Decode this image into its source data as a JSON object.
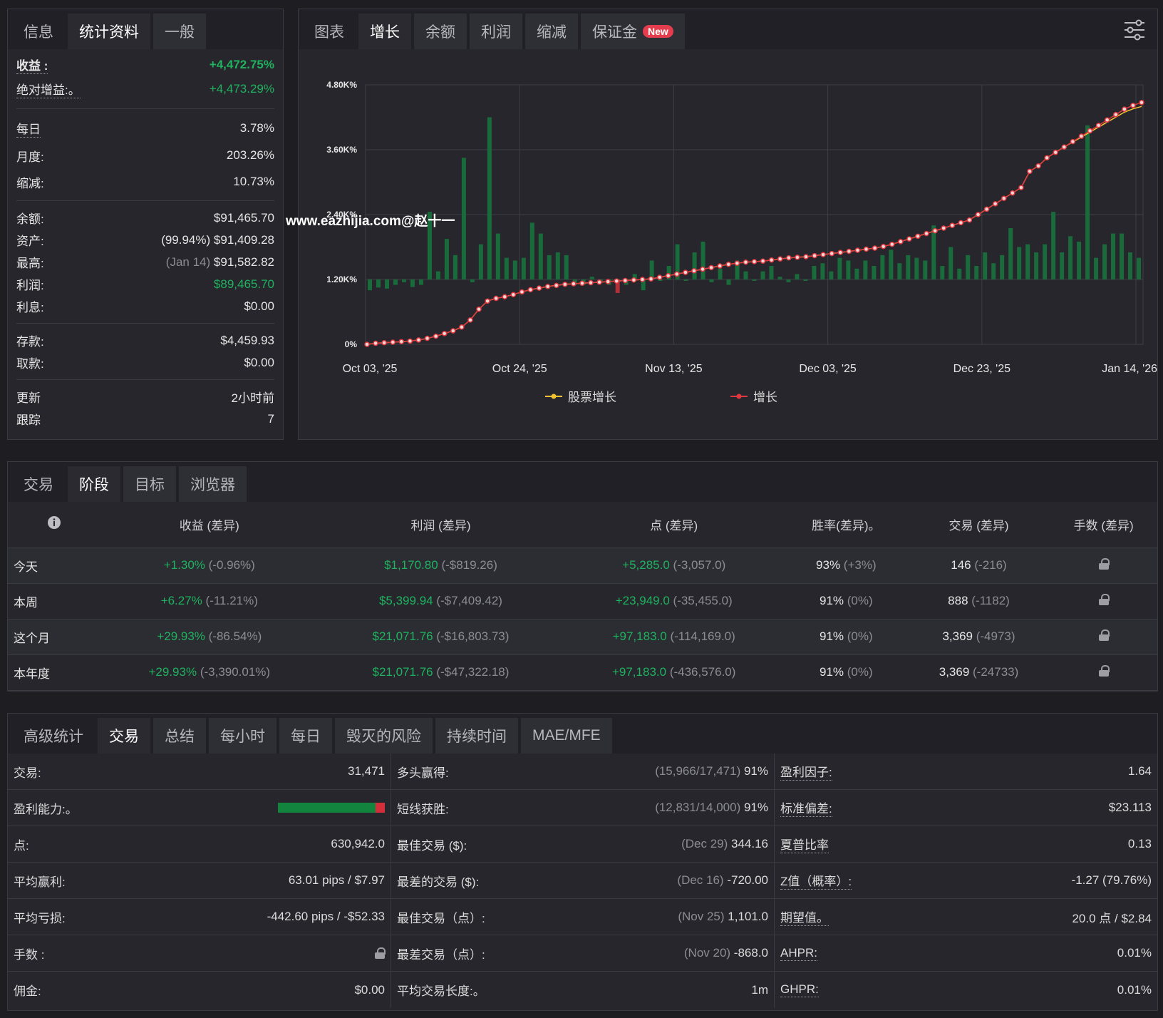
{
  "left": {
    "tabs": [
      "信息",
      "统计资料",
      "一般"
    ],
    "active_tab": 1,
    "profit_label": "收益 :",
    "profit_value": "+4,472.75%",
    "abs_label": "绝对增益:。",
    "abs_value": "+4,473.29%",
    "daily_label": "每日",
    "daily_value": "3.78%",
    "monthly_label": "月度:",
    "monthly_value": "203.26%",
    "drawdown_label": "缩减:",
    "drawdown_value": "10.73%",
    "balance_label": "余额:",
    "balance_value": "$91,465.70",
    "equity_label": "资产:",
    "equity_note": "(99.94%)",
    "equity_value": "$91,409.28",
    "high_label": "最高:",
    "high_note": "(Jan 14)",
    "high_value": "$91,582.82",
    "pl_label": "利润:",
    "pl_value": "$89,465.70",
    "interest_label": "利息:",
    "interest_value": "$0.00",
    "deposit_label": "存款:",
    "deposit_value": "$4,459.93",
    "withdraw_label": "取款:",
    "withdraw_value": "$0.00",
    "updated_label": "更新",
    "updated_value": "2小时前",
    "follow_label": "跟踪",
    "follow_value": "7"
  },
  "chart_panel": {
    "tabs": [
      "图表",
      "增长",
      "余额",
      "利润",
      "缩减",
      "保证金"
    ],
    "active_tab": 1,
    "new_badge": "New",
    "settings_icon": "sliders-icon",
    "watermark": "www.eazhijia.com@赵十一",
    "legend": [
      "股票增长",
      "增长"
    ]
  },
  "chart_data": {
    "type": "line+bar",
    "y_ticks": [
      "0%",
      "1.20K%",
      "2.40K%",
      "3.60K%",
      "4.80K%"
    ],
    "ylim": [
      0,
      4800
    ],
    "x_ticks": [
      "Oct 03, '25",
      "Oct 24, '25",
      "Nov 13, '25",
      "Dec 03, '25",
      "Dec 23, '25",
      "Jan 14, '26"
    ],
    "colors": {
      "growth": "#e0383f",
      "equity": "#f2c230",
      "bar_up": "#1a6b3c",
      "bar_down": "#b03038"
    },
    "growth": [
      0,
      20,
      30,
      40,
      50,
      60,
      80,
      110,
      150,
      200,
      250,
      320,
      450,
      650,
      800,
      850,
      880,
      920,
      970,
      1010,
      1040,
      1070,
      1090,
      1110,
      1120,
      1130,
      1140,
      1150,
      1160,
      1170,
      1180,
      1190,
      1200,
      1210,
      1240,
      1270,
      1300,
      1330,
      1360,
      1390,
      1420,
      1450,
      1480,
      1500,
      1520,
      1530,
      1540,
      1560,
      1580,
      1600,
      1610,
      1620,
      1640,
      1660,
      1680,
      1700,
      1720,
      1740,
      1760,
      1780,
      1810,
      1850,
      1900,
      1950,
      2000,
      2050,
      2100,
      2150,
      2200,
      2250,
      2300,
      2400,
      2500,
      2600,
      2700,
      2800,
      2900,
      3200,
      3300,
      3450,
      3550,
      3650,
      3750,
      3850,
      3950,
      4050,
      4150,
      4250,
      4350,
      4420,
      4473
    ],
    "bars": [
      1.0,
      1.05,
      1.03,
      1.1,
      1.15,
      1.06,
      1.1,
      2.45,
      1.35,
      1.95,
      1.65,
      3.45,
      1.15,
      1.85,
      4.2,
      2.05,
      1.6,
      1.55,
      1.6,
      2.25,
      2.05,
      1.65,
      1.7,
      1.65,
      1.1,
      1.1,
      1.25,
      1.2,
      1.1,
      -0.25,
      1.1,
      1.3,
      1.0,
      1.55,
      1.2,
      1.45,
      1.85,
      1.2,
      1.7,
      1.9,
      1.15,
      1.4,
      1.1,
      1.55,
      1.35,
      1.2,
      1.35,
      1.45,
      1.25,
      1.15,
      1.3,
      1.2,
      1.45,
      1.5,
      1.35,
      1.6,
      1.55,
      1.4,
      1.55,
      1.45,
      1.65,
      1.75,
      1.5,
      1.65,
      1.6,
      1.55,
      2.2,
      1.45,
      1.8,
      1.4,
      1.65,
      1.45,
      1.7,
      1.5,
      1.65,
      2.15,
      1.8,
      1.85,
      1.7,
      1.85,
      2.45,
      1.7,
      2.0,
      1.9,
      4.05,
      1.6,
      1.85,
      2.05,
      2.05,
      1.7,
      1.6
    ]
  },
  "stages": {
    "tabs": [
      "交易",
      "阶段",
      "目标",
      "浏览器"
    ],
    "active_tab": 1,
    "headers": [
      "收益 (差异)",
      "利润 (差异)",
      "点 (差异)",
      "胜率(差异)。",
      "交易 (差异)",
      "手数 (差异)"
    ],
    "rows": [
      {
        "label": "今天",
        "gain": "+1.30%",
        "gain_diff": "(-0.96%)",
        "profit": "$1,170.80",
        "profit_diff": "(-$819.26)",
        "pips": "+5,285.0",
        "pips_diff": "(-3,057.0)",
        "win": "93%",
        "win_diff": "(+3%)",
        "trades": "146",
        "trades_diff": "(-216)"
      },
      {
        "label": "本周",
        "gain": "+6.27%",
        "gain_diff": "(-11.21%)",
        "profit": "$5,399.94",
        "profit_diff": "(-$7,409.42)",
        "pips": "+23,949.0",
        "pips_diff": "(-35,455.0)",
        "win": "91%",
        "win_diff": "(0%)",
        "trades": "888",
        "trades_diff": "(-1182)"
      },
      {
        "label": "这个月",
        "gain": "+29.93%",
        "gain_diff": "(-86.54%)",
        "profit": "$21,071.76",
        "profit_diff": "(-$16,803.73)",
        "pips": "+97,183.0",
        "pips_diff": "(-114,169.0)",
        "win": "91%",
        "win_diff": "(0%)",
        "trades": "3,369",
        "trades_diff": "(-4973)"
      },
      {
        "label": "本年度",
        "gain": "+29.93%",
        "gain_diff": "(-3,390.01%)",
        "profit": "$21,071.76",
        "profit_diff": "(-$47,322.18)",
        "pips": "+97,183.0",
        "pips_diff": "(-436,576.0)",
        "win": "91%",
        "win_diff": "(0%)",
        "trades": "3,369",
        "trades_diff": "(-24733)"
      }
    ]
  },
  "advanced": {
    "tabs": [
      "高级统计",
      "交易",
      "总结",
      "每小时",
      "每日",
      "毁灭的风险",
      "持续时间",
      "MAE/MFE"
    ],
    "active_tab": 1,
    "col1": [
      {
        "label": "交易:",
        "value": "31,471"
      },
      {
        "label": "盈利能力:。",
        "value": ""
      },
      {
        "label": "点:",
        "value": "630,942.0"
      },
      {
        "label": "平均赢利:",
        "value": "63.01 pips / $7.97"
      },
      {
        "label": "平均亏损:",
        "value": "-442.60 pips / -$52.33"
      },
      {
        "label": "手数 :",
        "value": ""
      },
      {
        "label": "佣金:",
        "value": "$0.00"
      }
    ],
    "profitability_win_fraction": 0.91,
    "col2": [
      {
        "label": "多头赢得:",
        "note": "(15,966/17,471)",
        "value": "91%"
      },
      {
        "label": "短线获胜:",
        "note": "(12,831/14,000)",
        "value": "91%"
      },
      {
        "label": "最佳交易 ($):",
        "note": "(Dec 29)",
        "value": "344.16"
      },
      {
        "label": "最差的交易 ($):",
        "note": "(Dec 16)",
        "value": "-720.00"
      },
      {
        "label": "最佳交易（点）:",
        "note": "(Nov 25)",
        "value": "1,101.0"
      },
      {
        "label": "最差交易（点）:",
        "note": "(Nov 20)",
        "value": "-868.0"
      },
      {
        "label": "平均交易长度:。",
        "note": "",
        "value": "1m"
      }
    ],
    "col3": [
      {
        "label": "盈利因子:",
        "value": "1.64"
      },
      {
        "label": "标准偏差:",
        "value": "$23.113"
      },
      {
        "label": "夏普比率",
        "value": "0.13"
      },
      {
        "label": "Z值（概率）:",
        "value": "-1.27 (79.76%)"
      },
      {
        "label": "期望值。",
        "value": "20.0 点 / $2.84"
      },
      {
        "label": "AHPR:",
        "value": "0.01%"
      },
      {
        "label": "GHPR:",
        "value": "0.01%"
      }
    ]
  }
}
